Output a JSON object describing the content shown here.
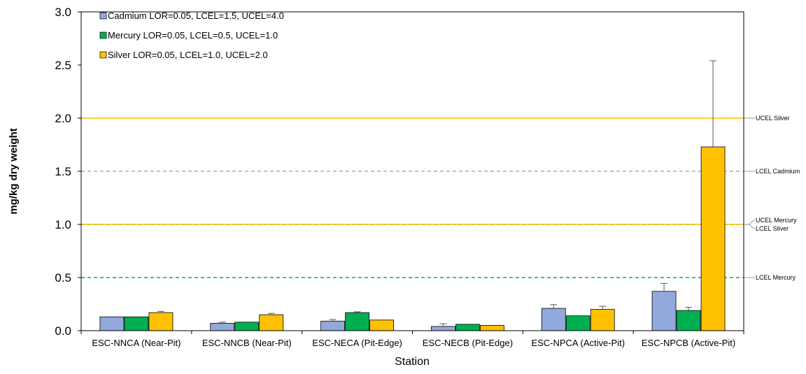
{
  "chart_data": {
    "type": "bar",
    "title": "",
    "xlabel": "Station",
    "ylabel": "mg/kg dry weight",
    "ylim": [
      0,
      3.0
    ],
    "yticks": [
      "0.0",
      "0.5",
      "1.0",
      "1.5",
      "2.0",
      "2.5",
      "3.0"
    ],
    "grid": false,
    "legend_position": "top-left",
    "categories": [
      "ESC-NNCA (Near-Pit)",
      "ESC-NNCB (Near-Pit)",
      "ESC-NECA (Pit-Edge)",
      "ESC-NECB (Pit-Edge)",
      "ESC-NPCA (Active-Pit)",
      "ESC-NPCB (Active-Pit)"
    ],
    "series": [
      {
        "name": "Cadmium LOR=0.05, LCEL=1.5, UCEL=4.0",
        "color": "#92a9dc",
        "values": [
          0.13,
          0.07,
          0.09,
          0.04,
          0.21,
          0.37
        ],
        "errors": [
          0.0,
          0.01,
          0.015,
          0.025,
          0.035,
          0.075
        ]
      },
      {
        "name": "Mercury LOR=0.05, LCEL=0.5, UCEL=1.0",
        "color": "#00b050",
        "values": [
          0.13,
          0.08,
          0.17,
          0.06,
          0.14,
          0.19
        ],
        "errors": [
          0.0,
          0.0,
          0.008,
          0.0,
          0.0,
          0.03
        ]
      },
      {
        "name": "Silver LOR=0.05, LCEL=1.0, UCEL=2.0",
        "color": "#ffc000",
        "values": [
          0.17,
          0.15,
          0.1,
          0.05,
          0.2,
          1.73
        ],
        "errors": [
          0.012,
          0.013,
          0.0,
          0.0,
          0.03,
          0.81
        ]
      }
    ],
    "reference_lines": [
      {
        "label": "UCEL Silver",
        "value": 2.0,
        "color": "#ffc000",
        "dashed": false
      },
      {
        "label": "LCEL Cadmium",
        "value": 1.5,
        "color": "#8fb0dc",
        "dashed": true
      },
      {
        "label": "UCEL Mercury",
        "value": 1.0,
        "color": "#00b050",
        "dashed": true
      },
      {
        "label": "LCEL Silver",
        "value": 1.0,
        "color": "#ffc000",
        "dashed": false
      },
      {
        "label": "LCEL Mercury",
        "value": 0.5,
        "color": "#00b050",
        "dashed": true
      }
    ]
  }
}
